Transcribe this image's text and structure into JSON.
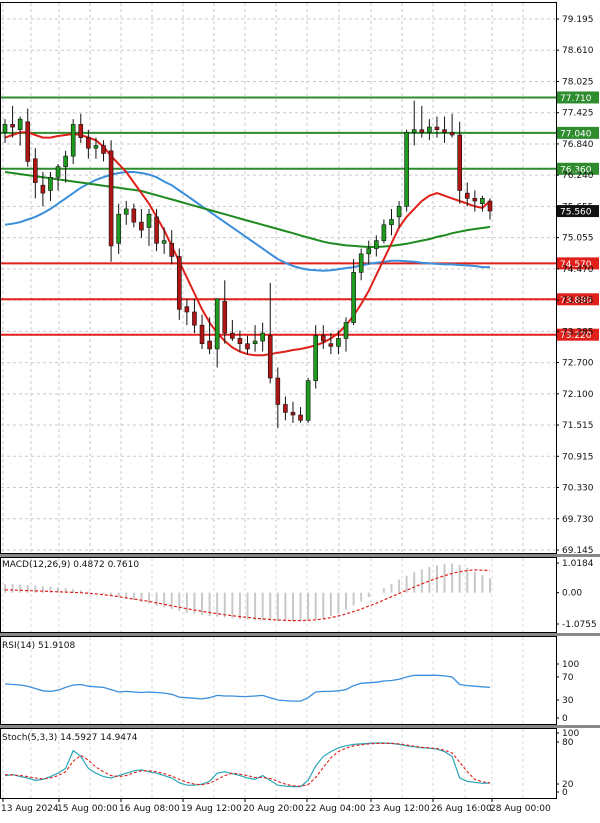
{
  "chart_data": [
    {
      "type": "candlestick",
      "ylim": [
        69.145,
        79.195
      ],
      "y_ticks": [
        "79.195",
        "78.610",
        "78.025",
        "77.425",
        "76.840",
        "76.240",
        "75.655",
        "75.055",
        "74.470",
        "73.885",
        "73.285",
        "72.700",
        "72.100",
        "71.515",
        "70.915",
        "70.330",
        "69.730",
        "69.145"
      ],
      "candles": [
        [
          77.05,
          77.3,
          76.85,
          77.2
        ],
        [
          77.2,
          77.55,
          76.95,
          77.15
        ],
        [
          77.1,
          77.35,
          76.8,
          77.3
        ],
        [
          77.25,
          77.5,
          76.4,
          76.5
        ],
        [
          76.55,
          76.75,
          75.8,
          76.1
        ],
        [
          76.05,
          76.3,
          75.65,
          75.9
        ],
        [
          75.95,
          76.3,
          75.75,
          76.2
        ],
        [
          76.2,
          76.45,
          75.95,
          76.4
        ],
        [
          76.4,
          76.7,
          76.1,
          76.6
        ],
        [
          76.6,
          77.3,
          76.45,
          77.2
        ],
        [
          77.2,
          77.4,
          76.85,
          76.95
        ],
        [
          76.95,
          77.1,
          76.55,
          76.75
        ],
        [
          76.75,
          76.95,
          76.55,
          76.8
        ],
        [
          76.8,
          76.9,
          76.5,
          76.65
        ],
        [
          76.7,
          76.9,
          74.6,
          74.9
        ],
        [
          74.95,
          75.7,
          74.75,
          75.5
        ],
        [
          75.5,
          75.75,
          75.3,
          75.6
        ],
        [
          75.6,
          75.7,
          75.25,
          75.35
        ],
        [
          75.35,
          75.6,
          75.05,
          75.2
        ],
        [
          75.25,
          75.6,
          74.9,
          75.5
        ],
        [
          75.45,
          75.6,
          74.8,
          74.95
        ],
        [
          74.95,
          75.25,
          74.75,
          75.0
        ],
        [
          74.95,
          75.2,
          74.55,
          74.7
        ],
        [
          74.7,
          74.85,
          73.5,
          73.7
        ],
        [
          73.75,
          73.9,
          73.4,
          73.65
        ],
        [
          73.65,
          73.9,
          73.25,
          73.4
        ],
        [
          73.4,
          73.6,
          72.95,
          73.05
        ],
        [
          73.1,
          73.55,
          72.85,
          72.95
        ],
        [
          72.95,
          73.9,
          72.6,
          73.9
        ],
        [
          73.85,
          74.25,
          73.05,
          73.25
        ],
        [
          73.25,
          73.5,
          73.1,
          73.15
        ],
        [
          73.15,
          73.3,
          72.9,
          73.05
        ],
        [
          73.05,
          73.2,
          72.85,
          72.95
        ],
        [
          73.05,
          73.4,
          72.9,
          73.1
        ],
        [
          73.1,
          73.45,
          72.9,
          73.25
        ],
        [
          73.2,
          74.2,
          72.3,
          72.4
        ],
        [
          72.4,
          72.6,
          71.45,
          71.9
        ],
        [
          71.9,
          72.05,
          71.6,
          71.75
        ],
        [
          71.75,
          71.95,
          71.55,
          71.7
        ],
        [
          71.7,
          71.85,
          71.55,
          71.6
        ],
        [
          71.6,
          72.4,
          71.55,
          72.35
        ],
        [
          72.35,
          73.4,
          72.2,
          73.2
        ],
        [
          73.2,
          73.4,
          72.95,
          73.1
        ],
        [
          73.05,
          73.25,
          72.85,
          73.0
        ],
        [
          73.0,
          73.3,
          72.85,
          73.15
        ],
        [
          73.15,
          73.55,
          72.9,
          73.45
        ],
        [
          73.45,
          74.65,
          73.4,
          74.4
        ],
        [
          74.4,
          74.85,
          74.25,
          74.75
        ],
        [
          74.75,
          75.0,
          74.55,
          74.85
        ],
        [
          74.85,
          75.1,
          74.7,
          75.0
        ],
        [
          75.0,
          75.4,
          74.95,
          75.3
        ],
        [
          75.3,
          75.6,
          75.1,
          75.4
        ],
        [
          75.45,
          75.75,
          75.25,
          75.65
        ],
        [
          75.65,
          77.1,
          75.55,
          77.05
        ],
        [
          77.05,
          77.65,
          76.8,
          77.1
        ],
        [
          77.1,
          77.55,
          76.95,
          77.05
        ],
        [
          77.05,
          77.3,
          76.9,
          77.15
        ],
        [
          77.15,
          77.35,
          76.95,
          77.1
        ],
        [
          77.1,
          77.35,
          76.85,
          77.05
        ],
        [
          77.05,
          77.4,
          76.95,
          77.0
        ],
        [
          77.0,
          77.25,
          75.7,
          75.95
        ],
        [
          75.9,
          76.1,
          75.65,
          75.8
        ],
        [
          75.8,
          75.95,
          75.55,
          75.75
        ],
        [
          75.7,
          75.85,
          75.55,
          75.8
        ],
        [
          75.75,
          75.8,
          75.4,
          75.56
        ]
      ],
      "ma_red": [
        76.95,
        77.0,
        77.05,
        77.05,
        77.0,
        76.95,
        76.95,
        76.98,
        77.0,
        77.02,
        77.0,
        76.95,
        76.9,
        76.78,
        76.6,
        76.45,
        76.3,
        76.1,
        75.9,
        75.7,
        75.45,
        75.2,
        74.9,
        74.6,
        74.3,
        74.0,
        73.7,
        73.45,
        73.25,
        73.1,
        72.98,
        72.9,
        72.85,
        72.83,
        72.83,
        72.85,
        72.88,
        72.9,
        72.93,
        72.95,
        72.98,
        73.02,
        73.07,
        73.15,
        73.25,
        73.4,
        73.58,
        73.8,
        74.05,
        74.35,
        74.65,
        74.95,
        75.25,
        75.45,
        75.6,
        75.75,
        75.85,
        75.9,
        75.85,
        75.8,
        75.75,
        75.7,
        75.65,
        75.62,
        75.75
      ],
      "ma_blue": [
        75.3,
        75.32,
        75.35,
        75.4,
        75.45,
        75.52,
        75.6,
        75.7,
        75.8,
        75.9,
        76.0,
        76.08,
        76.15,
        76.2,
        76.25,
        76.28,
        76.3,
        76.3,
        76.28,
        76.25,
        76.2,
        76.12,
        76.05,
        75.95,
        75.85,
        75.75,
        75.65,
        75.55,
        75.45,
        75.35,
        75.25,
        75.15,
        75.05,
        74.95,
        74.85,
        74.75,
        74.65,
        74.58,
        74.52,
        74.48,
        74.45,
        74.44,
        74.43,
        74.44,
        74.46,
        74.48,
        74.5,
        74.53,
        74.56,
        74.58,
        74.6,
        74.62,
        74.62,
        74.61,
        74.6,
        74.58,
        74.57,
        74.56,
        74.55,
        74.55,
        74.54,
        74.53,
        74.52,
        74.5,
        74.5
      ],
      "ma_green": [
        76.3,
        76.28,
        76.26,
        76.24,
        76.22,
        76.2,
        76.18,
        76.16,
        76.14,
        76.12,
        76.1,
        76.08,
        76.06,
        76.04,
        76.02,
        76.0,
        75.98,
        75.96,
        75.94,
        75.9,
        75.86,
        75.82,
        75.78,
        75.74,
        75.7,
        75.66,
        75.62,
        75.58,
        75.54,
        75.5,
        75.46,
        75.42,
        75.38,
        75.34,
        75.3,
        75.26,
        75.22,
        75.18,
        75.14,
        75.1,
        75.06,
        75.02,
        74.98,
        74.95,
        74.93,
        74.91,
        74.9,
        74.89,
        74.88,
        74.88,
        74.89,
        74.9,
        74.92,
        74.94,
        74.97,
        75.0,
        75.03,
        75.07,
        75.1,
        75.14,
        75.17,
        75.2,
        75.22,
        75.24,
        75.26
      ],
      "hlines": [
        {
          "value": 77.71,
          "label": "77.710",
          "color": "#2e8b2e"
        },
        {
          "value": 77.04,
          "label": "77.040",
          "color": "#2e8b2e"
        },
        {
          "value": 76.36,
          "label": "76.360",
          "color": "#2e8b2e"
        },
        {
          "value": 74.57,
          "label": "74.570",
          "color": "#e0201a"
        },
        {
          "value": 73.89,
          "label": "73.890",
          "color": "#e0201a"
        },
        {
          "value": 73.22,
          "label": "73.220",
          "color": "#e0201a"
        }
      ],
      "current_price": "75.560"
    },
    {
      "type": "macd",
      "label": "MACD(12,26,9) 0.4872 0.7610",
      "ylim": [
        -1.0755,
        1.0184
      ],
      "y_ticks": [
        "1.0184",
        "0.00",
        "-1.0755"
      ],
      "histogram": [
        0.3,
        0.3,
        0.28,
        0.26,
        0.24,
        0.22,
        0.2,
        0.18,
        0.16,
        0.12,
        0.08,
        0.04,
        0.0,
        -0.04,
        -0.08,
        -0.14,
        -0.2,
        -0.26,
        -0.32,
        -0.38,
        -0.44,
        -0.5,
        -0.56,
        -0.62,
        -0.68,
        -0.72,
        -0.76,
        -0.8,
        -0.82,
        -0.85,
        -0.88,
        -0.9,
        -0.92,
        -0.94,
        -0.95,
        -0.96,
        -0.97,
        -0.98,
        -0.98,
        -0.97,
        -0.95,
        -0.92,
        -0.88,
        -0.8,
        -0.7,
        -0.58,
        -0.44,
        -0.3,
        -0.15,
        0.0,
        0.15,
        0.3,
        0.45,
        0.58,
        0.7,
        0.8,
        0.88,
        0.94,
        0.98,
        1.0,
        0.95,
        0.85,
        0.72,
        0.6,
        0.49
      ],
      "signal": [
        0.1,
        0.09,
        0.08,
        0.07,
        0.06,
        0.05,
        0.04,
        0.03,
        0.02,
        0.01,
        0.0,
        -0.02,
        -0.04,
        -0.07,
        -0.1,
        -0.14,
        -0.18,
        -0.22,
        -0.26,
        -0.3,
        -0.35,
        -0.4,
        -0.45,
        -0.5,
        -0.55,
        -0.6,
        -0.64,
        -0.68,
        -0.72,
        -0.76,
        -0.79,
        -0.82,
        -0.85,
        -0.88,
        -0.9,
        -0.92,
        -0.94,
        -0.95,
        -0.96,
        -0.96,
        -0.95,
        -0.93,
        -0.9,
        -0.86,
        -0.8,
        -0.73,
        -0.65,
        -0.56,
        -0.46,
        -0.36,
        -0.25,
        -0.14,
        -0.03,
        0.08,
        0.19,
        0.3,
        0.4,
        0.5,
        0.58,
        0.66,
        0.72,
        0.76,
        0.78,
        0.77,
        0.76
      ]
    },
    {
      "type": "rsi",
      "label": "RSI(14) 51.9108",
      "ylim": [
        0,
        100
      ],
      "y_ticks": [
        "100",
        "70",
        "30",
        "0"
      ],
      "values": [
        58,
        57,
        56,
        54,
        50,
        46,
        45,
        47,
        52,
        56,
        57,
        54,
        53,
        52,
        48,
        44,
        45,
        44,
        43,
        44,
        43,
        42,
        40,
        35,
        34,
        33,
        32,
        34,
        38,
        37,
        37,
        36,
        36,
        37,
        38,
        34,
        30,
        29,
        28,
        28,
        34,
        44,
        45,
        45,
        46,
        48,
        55,
        59,
        60,
        61,
        63,
        64,
        66,
        70,
        73,
        73,
        73,
        73,
        72,
        70,
        57,
        55,
        54,
        53,
        52
      ]
    },
    {
      "type": "stochastic",
      "label": "Stoch(5,3,3) 14.5927 14.9474",
      "ylim": [
        0,
        100
      ],
      "y_ticks": [
        "100",
        "80",
        "20",
        "0"
      ],
      "k": [
        30,
        32,
        28,
        25,
        20,
        22,
        28,
        35,
        45,
        82,
        70,
        45,
        35,
        28,
        25,
        30,
        35,
        40,
        42,
        38,
        35,
        30,
        25,
        15,
        10,
        10,
        12,
        18,
        35,
        38,
        34,
        30,
        25,
        22,
        30,
        20,
        10,
        8,
        7,
        7,
        20,
        50,
        70,
        80,
        88,
        92,
        95,
        96,
        97,
        98,
        98,
        97,
        95,
        92,
        90,
        88,
        87,
        85,
        80,
        70,
        25,
        18,
        16,
        14,
        14.6
      ],
      "d": [
        32,
        31,
        30,
        28,
        25,
        23,
        25,
        30,
        38,
        60,
        72,
        62,
        48,
        38,
        30,
        28,
        30,
        36,
        40,
        40,
        38,
        34,
        29,
        22,
        16,
        12,
        11,
        14,
        22,
        30,
        35,
        33,
        30,
        26,
        26,
        24,
        18,
        12,
        9,
        8,
        11,
        26,
        47,
        67,
        80,
        87,
        92,
        94,
        96,
        97,
        97,
        97,
        96,
        94,
        91,
        89,
        88,
        86,
        83,
        77,
        58,
        38,
        22,
        17,
        14.9
      ]
    }
  ],
  "x_ticks": [
    "13 Aug 2024",
    "15 Aug 00:00",
    "16 Aug 08:00",
    "19 Aug 12:00",
    "20 Aug 20:00",
    "22 Aug 04:00",
    "23 Aug 12:00",
    "26 Aug 16:00",
    "28 Aug 00:00"
  ]
}
